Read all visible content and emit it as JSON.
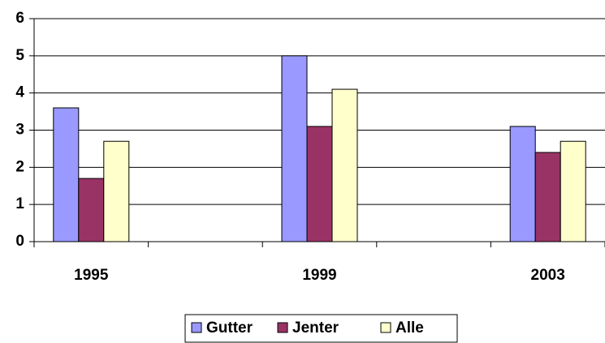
{
  "chart_data": {
    "type": "bar",
    "categories": [
      "1995",
      null,
      "1999",
      null,
      "2003"
    ],
    "series": [
      {
        "name": "Gutter",
        "color": "#9999ff",
        "values": [
          3.6,
          null,
          5.0,
          null,
          3.1
        ]
      },
      {
        "name": "Jenter",
        "color": "#993366",
        "values": [
          1.7,
          null,
          3.1,
          null,
          2.4
        ]
      },
      {
        "name": "Alle",
        "color": "#ffffcc",
        "values": [
          2.7,
          null,
          4.1,
          null,
          2.7
        ]
      }
    ],
    "ylim": [
      0,
      6
    ],
    "yticks": [
      0,
      1,
      2,
      3,
      4,
      5,
      6
    ],
    "grid": true,
    "legend": "bottom"
  }
}
